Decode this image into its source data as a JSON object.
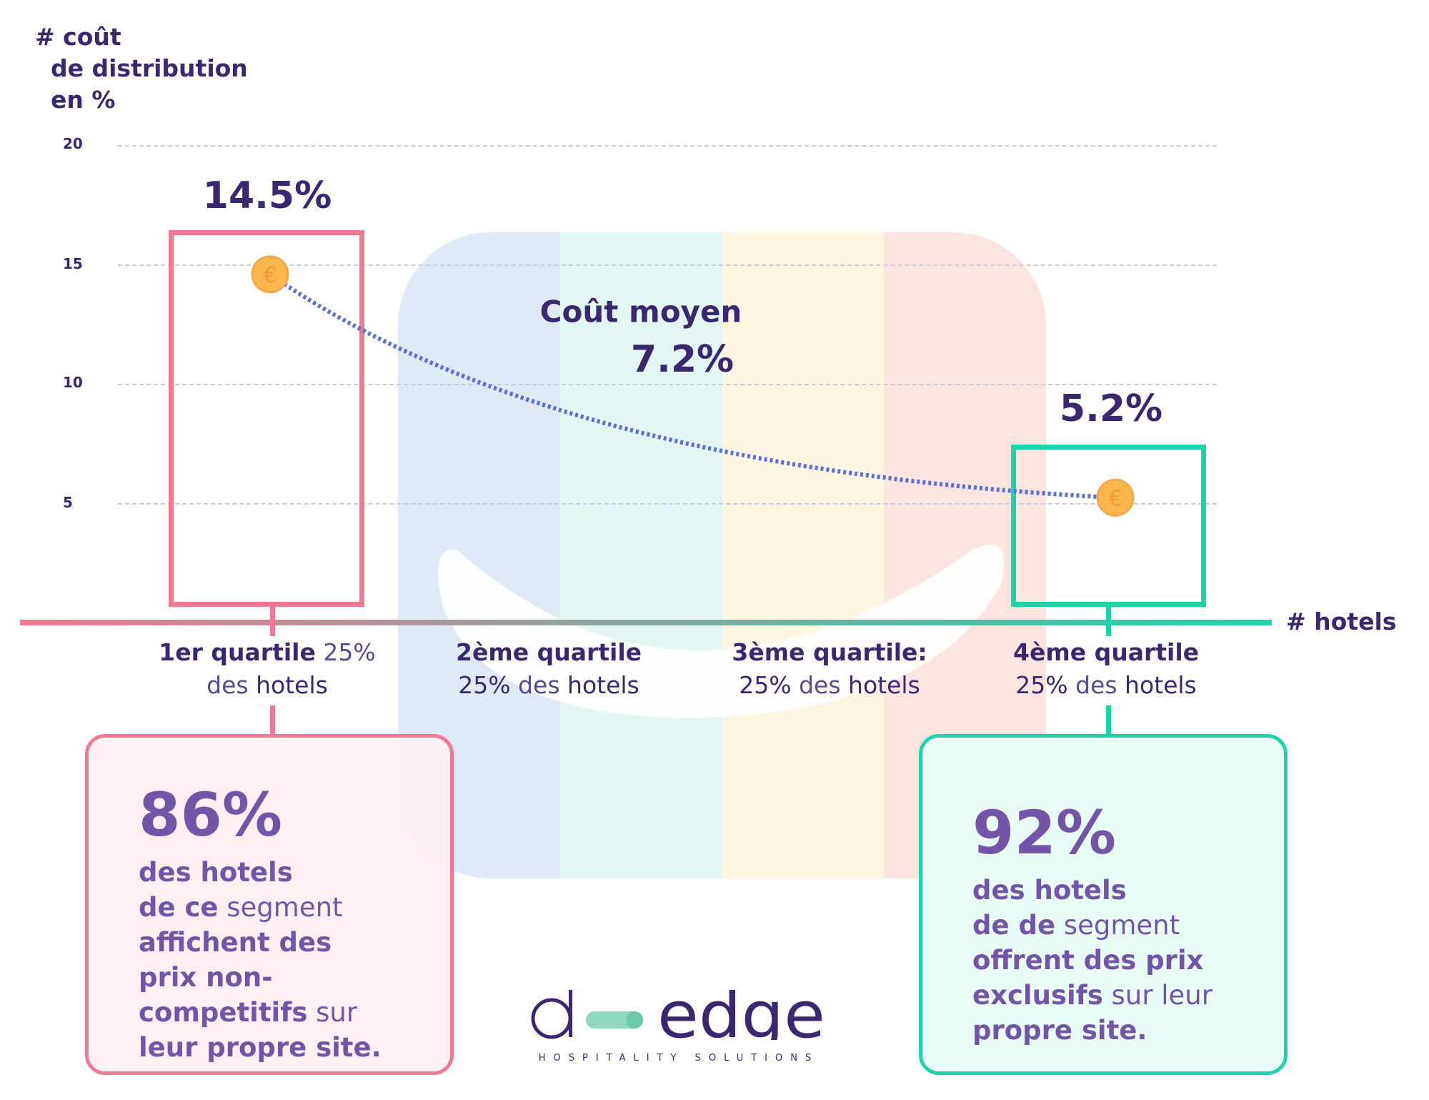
{
  "chart_data": {
    "type": "line",
    "title": "",
    "ylabel": [
      "# coût",
      "de distribution",
      "en %"
    ],
    "xlabel": "# hotels",
    "ylim": [
      0,
      20
    ],
    "yticks": [
      20,
      15,
      10,
      5
    ],
    "grid": true,
    "categories": [
      "1er quartile 25% des hotels",
      "2ème quartile 25% des hotels",
      "3ème quartile: 25% des hotels",
      "4ème quartile 25% des hotels"
    ],
    "series": [
      {
        "name": "coût de distribution",
        "points": [
          {
            "quartile": 1,
            "value": 14.5
          },
          {
            "quartile": 4,
            "value": 5.2
          }
        ]
      }
    ],
    "labels": {
      "q1": "14.5%",
      "q4": "5.2%"
    },
    "average": {
      "label": "Coût moyen",
      "value_label": "7.2%",
      "value": 7.2
    }
  },
  "quartiles": [
    {
      "bold": "1er quartile",
      "light1": " 25%",
      "line2a": "des ",
      "line2b": "hotels"
    },
    {
      "bold": "2ème quartile",
      "line2pre": "25% ",
      "line2a": "des ",
      "line2b": "hotels"
    },
    {
      "bold": "3ème quartile:",
      "line2pre": "25% ",
      "line2a": "des ",
      "line2b": "hotels"
    },
    {
      "bold": "4ème quartile",
      "line2pre": "25% ",
      "line2a": "des ",
      "line2b": "hotels"
    }
  ],
  "cards": {
    "left": {
      "pct": "86%",
      "l1": "des hotels",
      "l2a": "de ce",
      "l2b": " segment",
      "l3": "affichent des",
      "l4": "prix  non-",
      "l5a": "competitifs",
      "l5b": " sur",
      "l6": "leur propre site."
    },
    "right": {
      "pct": "92%",
      "l1": "des hotels",
      "l2a": "de de",
      "l2b": " segment",
      "l3": "offrent des prix",
      "l4a": "exclusifs",
      "l4b": " sur leur",
      "l5": "propre site."
    }
  },
  "logo": {
    "name": "d-edge",
    "tagline": "HOSPITALITY SOLUTIONS"
  },
  "colors": {
    "pink": "#ee7b93",
    "teal": "#1fd3a9",
    "purple": "#3b2770",
    "coin": "#f9b74c",
    "line": "#5b6fd9"
  }
}
